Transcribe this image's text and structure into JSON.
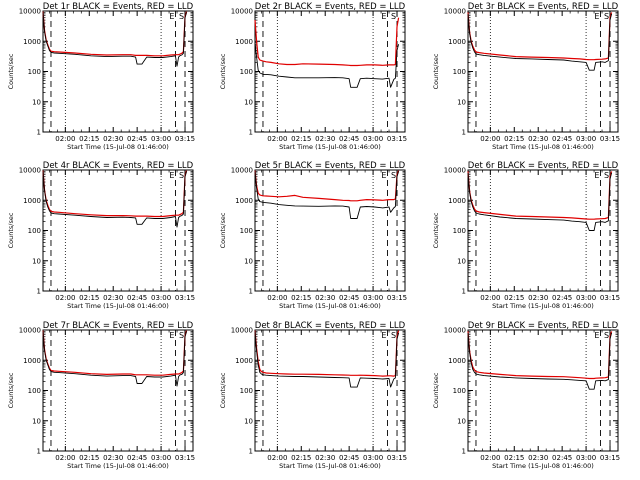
{
  "colors": {
    "events": "#000000",
    "lld": "#e00000",
    "frame": "#000000",
    "background": "#ffffff"
  },
  "shared": {
    "ylabel": "Counts/sec",
    "xlabel": "Start Time (15-Jul-08 01:46:00)",
    "x_unit": "minutes after 01:46:00",
    "xlim": [
      0,
      94
    ],
    "ylim": [
      1,
      10000
    ],
    "y_scale": "log",
    "y_ticks": [
      1,
      10,
      100,
      1000,
      10000
    ],
    "y_tick_labels": [
      "1",
      "10",
      "100",
      "1000",
      "10000"
    ],
    "x_ticks": [
      14,
      29,
      44,
      59,
      74,
      89
    ],
    "x_tick_labels": [
      "02:00",
      "02:15",
      "02:30",
      "02:45",
      "03:00",
      "03:15"
    ],
    "dotted_lines_x": [
      14,
      74
    ],
    "dashed_lines_x": [
      5,
      83,
      89
    ],
    "markers": [
      {
        "label": "E",
        "x": 83
      },
      {
        "label": "S",
        "x": 89
      }
    ],
    "grid": false,
    "legend": "none"
  },
  "chart_data": [
    {
      "type": "line",
      "title": "Det 1r BLACK = Events, RED = LLD",
      "x": [
        0,
        1,
        2,
        3,
        4,
        5,
        7,
        10,
        20,
        30,
        40,
        50,
        55,
        58,
        59,
        62,
        65,
        70,
        75,
        80,
        83,
        84,
        85,
        86,
        87,
        88,
        89,
        90
      ],
      "series": [
        {
          "name": "Events",
          "color": "#000000",
          "values": [
            9000,
            2000,
            1000,
            700,
            500,
            430,
            410,
            400,
            370,
            330,
            310,
            320,
            320,
            300,
            175,
            175,
            300,
            290,
            290,
            310,
            330,
            150,
            300,
            340,
            350,
            400,
            6000,
            9000
          ]
        },
        {
          "name": "LLD",
          "color": "#e00000",
          "values": [
            9500,
            2200,
            1100,
            760,
            550,
            470,
            450,
            440,
            410,
            370,
            350,
            360,
            360,
            340,
            340,
            340,
            340,
            330,
            330,
            350,
            360,
            360,
            360,
            380,
            400,
            450,
            6500,
            9500
          ]
        }
      ]
    },
    {
      "type": "line",
      "title": "Det 2r BLACK = Events, RED = LLD",
      "x": [
        0,
        1,
        2,
        3,
        4,
        5,
        7,
        10,
        15,
        20,
        25,
        30,
        40,
        50,
        55,
        59,
        60,
        64,
        66,
        70,
        75,
        80,
        84,
        85,
        87,
        88,
        89,
        90
      ],
      "series": [
        {
          "name": "Events",
          "color": "#000000",
          "values": [
            900,
            300,
            110,
            90,
            85,
            80,
            80,
            78,
            70,
            66,
            62,
            62,
            62,
            63,
            62,
            58,
            30,
            30,
            58,
            60,
            58,
            56,
            60,
            30,
            55,
            60,
            500,
            800
          ]
        },
        {
          "name": "LLD",
          "color": "#e00000",
          "values": [
            5000,
            1000,
            300,
            240,
            230,
            220,
            210,
            200,
            180,
            170,
            170,
            180,
            175,
            170,
            165,
            160,
            158,
            158,
            160,
            165,
            165,
            160,
            165,
            165,
            165,
            170,
            3000,
            6000
          ]
        }
      ]
    },
    {
      "type": "line",
      "title": "Det 3r BLACK = Events, RED = LLD",
      "x": [
        0,
        1,
        2,
        3,
        4,
        5,
        7,
        10,
        20,
        30,
        40,
        50,
        60,
        65,
        70,
        74,
        76,
        79,
        80,
        84,
        86,
        88,
        89,
        90
      ],
      "series": [
        {
          "name": "Events",
          "color": "#000000",
          "values": [
            8000,
            1800,
            900,
            600,
            450,
            380,
            360,
            340,
            300,
            270,
            260,
            250,
            240,
            220,
            210,
            200,
            110,
            110,
            200,
            210,
            200,
            230,
            5000,
            8000
          ]
        },
        {
          "name": "LLD",
          "color": "#e00000",
          "values": [
            9000,
            2000,
            1000,
            680,
            520,
            440,
            420,
            400,
            350,
            310,
            300,
            290,
            280,
            270,
            260,
            250,
            245,
            245,
            250,
            255,
            260,
            280,
            6000,
            9000
          ]
        }
      ]
    },
    {
      "type": "line",
      "title": "Det 4r BLACK = Events, RED = LLD",
      "x": [
        0,
        1,
        2,
        3,
        4,
        5,
        7,
        10,
        20,
        30,
        40,
        50,
        55,
        58,
        59,
        62,
        65,
        70,
        75,
        80,
        83,
        84,
        85,
        86,
        87,
        88,
        89,
        90
      ],
      "series": [
        {
          "name": "Events",
          "color": "#000000",
          "values": [
            9000,
            2000,
            900,
            600,
            450,
            380,
            360,
            350,
            320,
            290,
            270,
            275,
            270,
            260,
            160,
            160,
            260,
            250,
            250,
            270,
            290,
            130,
            270,
            300,
            310,
            350,
            6000,
            9000
          ]
        },
        {
          "name": "LLD",
          "color": "#e00000",
          "values": [
            9500,
            2100,
            1000,
            680,
            500,
            430,
            410,
            400,
            360,
            330,
            310,
            310,
            305,
            300,
            300,
            300,
            300,
            290,
            290,
            310,
            320,
            320,
            320,
            340,
            360,
            400,
            6500,
            9500
          ]
        }
      ]
    },
    {
      "type": "line",
      "title": "Det 5r BLACK = Events, RED = LLD",
      "x": [
        0,
        1,
        2,
        3,
        4,
        5,
        7,
        10,
        15,
        20,
        25,
        30,
        40,
        50,
        55,
        59,
        60,
        64,
        66,
        70,
        75,
        80,
        84,
        85,
        87,
        88,
        89,
        90
      ],
      "series": [
        {
          "name": "Events",
          "color": "#000000",
          "values": [
            9000,
            2500,
            1100,
            900,
            880,
            850,
            830,
            800,
            720,
            680,
            650,
            640,
            630,
            650,
            640,
            600,
            250,
            250,
            600,
            620,
            600,
            560,
            600,
            400,
            560,
            620,
            6000,
            9000
          ]
        },
        {
          "name": "LLD",
          "color": "#e00000",
          "values": [
            9500,
            3000,
            1700,
            1500,
            1450,
            1400,
            1380,
            1350,
            1300,
            1350,
            1450,
            1250,
            1150,
            1050,
            1000,
            980,
            960,
            960,
            1000,
            1050,
            1030,
            1000,
            1050,
            1050,
            1050,
            1100,
            7000,
            9500
          ]
        }
      ]
    },
    {
      "type": "line",
      "title": "Det 6r BLACK = Events, RED = LLD",
      "x": [
        0,
        1,
        2,
        3,
        4,
        5,
        7,
        10,
        20,
        30,
        40,
        50,
        60,
        65,
        70,
        74,
        76,
        79,
        80,
        84,
        86,
        88,
        89,
        90
      ],
      "series": [
        {
          "name": "Events",
          "color": "#000000",
          "values": [
            8000,
            1800,
            900,
            600,
            450,
            380,
            350,
            330,
            280,
            250,
            240,
            230,
            220,
            205,
            195,
            185,
            100,
            100,
            185,
            195,
            185,
            210,
            5000,
            8000
          ]
        },
        {
          "name": "LLD",
          "color": "#e00000",
          "values": [
            9000,
            2000,
            1000,
            680,
            520,
            440,
            410,
            390,
            340,
            300,
            290,
            280,
            270,
            260,
            250,
            240,
            236,
            236,
            240,
            245,
            250,
            270,
            6000,
            9000
          ]
        }
      ]
    },
    {
      "type": "line",
      "title": "Det 7r BLACK = Events, RED = LLD",
      "x": [
        0,
        1,
        2,
        3,
        4,
        5,
        7,
        10,
        20,
        30,
        40,
        50,
        55,
        58,
        59,
        62,
        65,
        70,
        75,
        80,
        83,
        84,
        85,
        86,
        87,
        88,
        89,
        90
      ],
      "series": [
        {
          "name": "Events",
          "color": "#000000",
          "values": [
            9000,
            2000,
            1000,
            700,
            500,
            420,
            400,
            390,
            360,
            320,
            300,
            310,
            310,
            290,
            170,
            170,
            290,
            280,
            280,
            300,
            320,
            140,
            290,
            330,
            340,
            390,
            6000,
            9000
          ]
        },
        {
          "name": "LLD",
          "color": "#e00000",
          "values": [
            9500,
            2200,
            1100,
            760,
            550,
            460,
            440,
            430,
            400,
            360,
            340,
            350,
            350,
            330,
            330,
            330,
            330,
            320,
            320,
            340,
            350,
            350,
            350,
            370,
            390,
            440,
            6500,
            9500
          ]
        }
      ]
    },
    {
      "type": "line",
      "title": "Det 8r BLACK = Events, RED = LLD",
      "x": [
        0,
        1,
        2,
        3,
        4,
        5,
        7,
        10,
        15,
        20,
        25,
        30,
        40,
        50,
        55,
        59,
        60,
        64,
        66,
        70,
        75,
        80,
        84,
        85,
        87,
        88,
        89,
        90
      ],
      "series": [
        {
          "name": "Events",
          "color": "#000000",
          "values": [
            9000,
            2000,
            700,
            400,
            350,
            330,
            320,
            310,
            300,
            295,
            290,
            290,
            280,
            270,
            265,
            260,
            130,
            130,
            260,
            255,
            250,
            240,
            250,
            130,
            240,
            260,
            5000,
            8000
          ]
        },
        {
          "name": "LLD",
          "color": "#e00000",
          "values": [
            9500,
            2500,
            900,
            500,
            420,
            400,
            380,
            370,
            360,
            350,
            345,
            345,
            340,
            330,
            325,
            320,
            318,
            318,
            320,
            315,
            310,
            300,
            305,
            305,
            300,
            310,
            6000,
            9500
          ]
        }
      ]
    },
    {
      "type": "line",
      "title": "Det 9r BLACK = Events, RED = LLD",
      "x": [
        0,
        1,
        2,
        3,
        4,
        5,
        7,
        10,
        20,
        30,
        40,
        50,
        60,
        65,
        70,
        74,
        76,
        79,
        80,
        84,
        86,
        88,
        89,
        90
      ],
      "series": [
        {
          "name": "Events",
          "color": "#000000",
          "values": [
            8000,
            1800,
            800,
            500,
            400,
            350,
            330,
            310,
            280,
            260,
            250,
            240,
            235,
            225,
            215,
            210,
            110,
            110,
            210,
            215,
            210,
            230,
            5000,
            8000
          ]
        },
        {
          "name": "LLD",
          "color": "#e00000",
          "values": [
            9000,
            2000,
            950,
            600,
            480,
            420,
            400,
            380,
            340,
            310,
            300,
            290,
            285,
            275,
            265,
            255,
            250,
            250,
            255,
            260,
            265,
            280,
            6000,
            9000
          ]
        }
      ]
    }
  ]
}
